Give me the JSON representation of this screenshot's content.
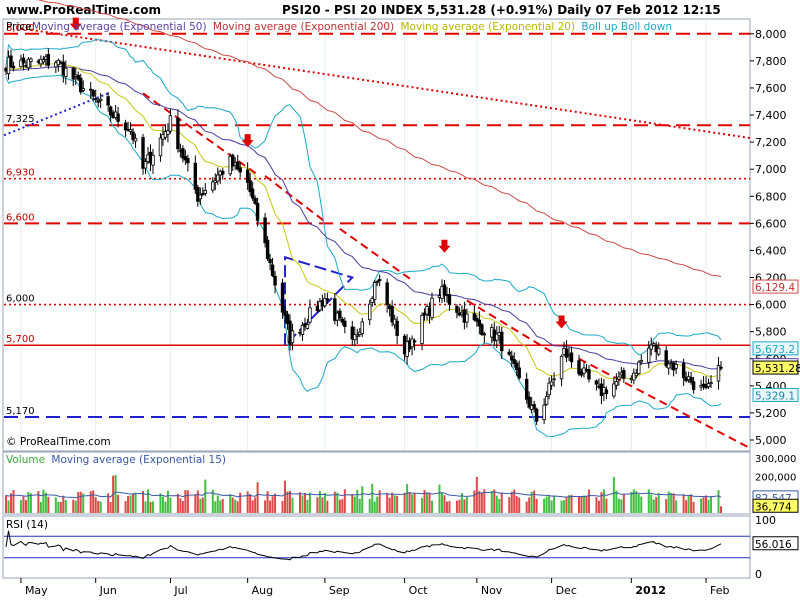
{
  "header": {
    "site": "www.ProRealTime.com",
    "quote": "PSI20 - PSI 20 INDEX   5,531.28 (+0.91%)   Daily  07 Feb 2012 12:15"
  },
  "price_panel": {
    "legend": [
      {
        "text": "Price",
        "color": "#000000"
      },
      {
        "text": "Moving average (Exponential 50)",
        "color": "#5a3fa8"
      },
      {
        "text": "Moving average (Exponential 200)",
        "color": "#c03030"
      },
      {
        "text": "Moving average (Exponential 20)",
        "color": "#c8c800"
      },
      {
        "text": "Boll up Boll down",
        "color": "#1aa9c9"
      }
    ],
    "watermark": "© ProRealTime.com",
    "y_ticks": [
      "8,000",
      "7,800",
      "7,600",
      "7,400",
      "7,200",
      "7,000",
      "6,800",
      "6,600",
      "6,400",
      "6,200",
      "6,000",
      "5,800",
      "5,600",
      "5,400",
      "5,200",
      "5,000"
    ],
    "level_labels": [
      "8,000",
      "7,325",
      "6,930",
      "6,600",
      "6,000",
      "5,700",
      "5,170"
    ],
    "value_boxes": {
      "ema200": "6,129.4",
      "price": "5,531.28",
      "boll_down": "5,329.1",
      "boll_up": "5,673.2",
      "ema50": "5,548.9"
    }
  },
  "volume_panel": {
    "legend": [
      {
        "text": "Volume",
        "color": "#3aa83a"
      },
      {
        "text": "Moving average (Exponential 15)",
        "color": "#3a5aa8"
      }
    ],
    "y_ticks": [
      "300,000",
      "200,000",
      "100,000"
    ],
    "value_boxes": {
      "volume": "36,774",
      "ma": "82,547"
    }
  },
  "rsi_panel": {
    "legend": "RSI (14)",
    "y_ticks": [
      "100",
      "0"
    ],
    "value_box": "56.016"
  },
  "x_axis": {
    "labels": [
      "May",
      "Jun",
      "Jul",
      "Aug",
      "Sep",
      "Oct",
      "Nov",
      "Dec",
      "2012",
      "Feb"
    ]
  },
  "colors": {
    "up_candle": "#ffffff",
    "down_candle": "#000000",
    "level_line": "#e00000",
    "support_line": "#2020d0",
    "ema50": "#4b3aa0",
    "ema200": "#d04848",
    "ema20": "#c8c810",
    "bollinger": "#1aa9c9",
    "volume_up": "#40c040",
    "volume_down": "#e04848",
    "ticker_box": "#ffff66"
  },
  "chart_data": {
    "type": "candlestick",
    "title": "PSI20 - PSI 20 INDEX",
    "last": 5531.28,
    "change_pct": 0.91,
    "timeframe": "Daily",
    "date": "07 Feb 2012 12:15",
    "ylim": [
      5000,
      8000
    ],
    "close_path": [
      {
        "date": "2011-05-02",
        "close": 7780
      },
      {
        "date": "2011-05-16",
        "close": 7800
      },
      {
        "date": "2011-06-01",
        "close": 7500
      },
      {
        "date": "2011-06-15",
        "close": 7300
      },
      {
        "date": "2011-06-20",
        "close": 7000
      },
      {
        "date": "2011-07-01",
        "close": 7350
      },
      {
        "date": "2011-07-12",
        "close": 6800
      },
      {
        "date": "2011-07-25",
        "close": 7050
      },
      {
        "date": "2011-08-01",
        "close": 6900
      },
      {
        "date": "2011-08-10",
        "close": 6300
      },
      {
        "date": "2011-08-18",
        "close": 5750
      },
      {
        "date": "2011-09-01",
        "close": 6050
      },
      {
        "date": "2011-09-12",
        "close": 5700
      },
      {
        "date": "2011-09-22",
        "close": 6200
      },
      {
        "date": "2011-10-03",
        "close": 5650
      },
      {
        "date": "2011-10-17",
        "close": 6100
      },
      {
        "date": "2011-10-28",
        "close": 5900
      },
      {
        "date": "2011-11-10",
        "close": 5750
      },
      {
        "date": "2011-11-25",
        "close": 5150
      },
      {
        "date": "2011-12-06",
        "close": 5650
      },
      {
        "date": "2011-12-20",
        "close": 5350
      },
      {
        "date": "2012-01-03",
        "close": 5500
      },
      {
        "date": "2012-01-10",
        "close": 5700
      },
      {
        "date": "2012-01-25",
        "close": 5450
      },
      {
        "date": "2012-02-01",
        "close": 5340
      },
      {
        "date": "2012-02-07",
        "close": 5531.28
      }
    ],
    "horizontal_levels": [
      8000,
      7325,
      6930,
      6600,
      6000,
      5700,
      5170
    ],
    "indicators": {
      "ema200_last": 6129.4,
      "ema50_last": 5548.9,
      "boll_up_last": 5673.2,
      "boll_down_last": 5329.1,
      "volume_last": 36774,
      "volume_ma15_last": 82547,
      "rsi14_last": 56.016
    },
    "rsi_ylim": [
      0,
      100
    ],
    "volume_ylim": [
      0,
      300000
    ]
  }
}
